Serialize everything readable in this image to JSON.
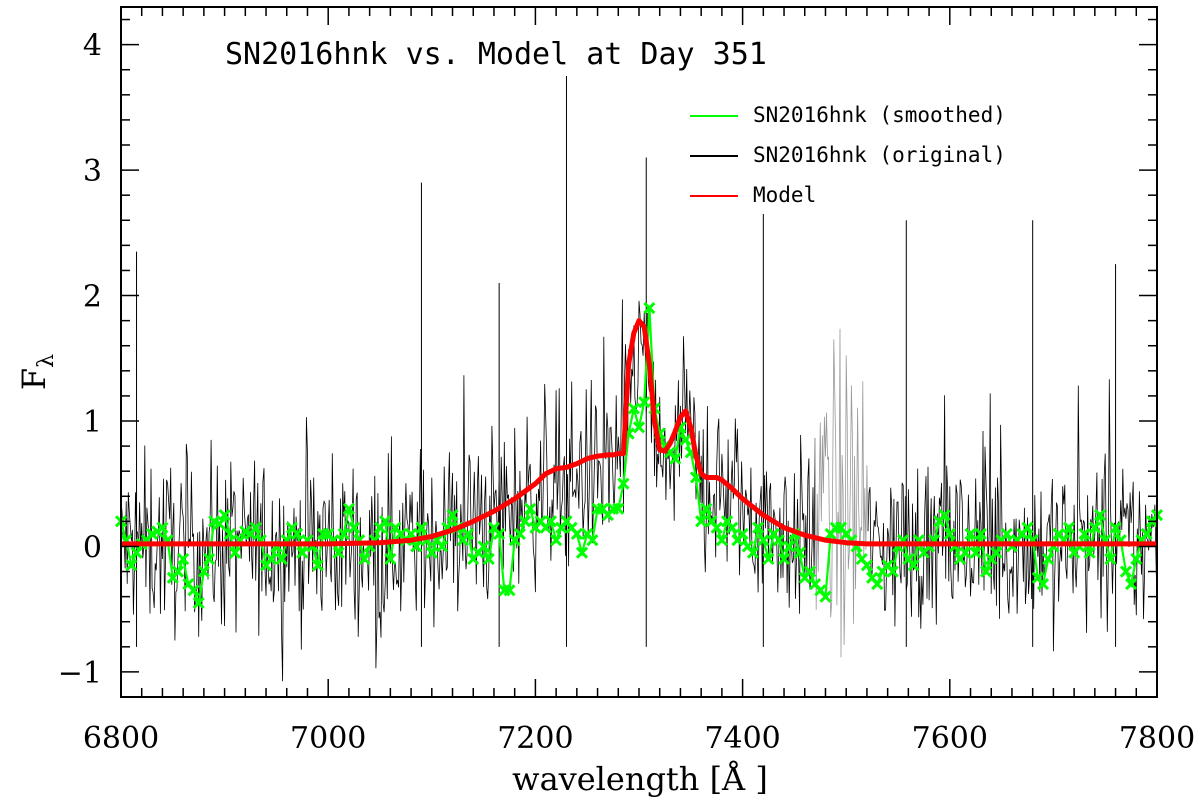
{
  "chart_data": {
    "type": "line",
    "title": "SN2016hnk vs. Model at Day 351",
    "xlabel": "wavelength [Å ]",
    "ylabel": "F",
    "ylabel_subscript": "λ",
    "xlim": [
      6800,
      7800
    ],
    "ylim": [
      -1.2,
      4.3
    ],
    "xticks_major": [
      6800,
      7000,
      7200,
      7400,
      7600,
      7800
    ],
    "xtick_labels": [
      "6800",
      "7000",
      "7200",
      "7400",
      "7600",
      "7800"
    ],
    "yticks_major": [
      -1,
      0,
      1,
      2,
      3,
      4
    ],
    "ytick_labels": [
      "−1",
      "0",
      "1",
      "2",
      "3",
      "4"
    ],
    "legend_position": "top-right",
    "series": [
      {
        "name": "SN2016hnk (smoothed)",
        "color": "#00ff00",
        "marker": "x",
        "x": [
          6800,
          6805,
          6810,
          6815,
          6820,
          6825,
          6830,
          6835,
          6840,
          6845,
          6850,
          6855,
          6860,
          6865,
          6870,
          6875,
          6880,
          6885,
          6890,
          6895,
          6900,
          6905,
          6910,
          6915,
          6920,
          6925,
          6930,
          6935,
          6940,
          6945,
          6950,
          6955,
          6960,
          6965,
          6970,
          6975,
          6980,
          6985,
          6990,
          6995,
          7000,
          7005,
          7010,
          7015,
          7020,
          7025,
          7030,
          7035,
          7040,
          7045,
          7050,
          7055,
          7060,
          7065,
          7070,
          7075,
          7080,
          7085,
          7090,
          7095,
          7100,
          7105,
          7110,
          7115,
          7120,
          7125,
          7130,
          7135,
          7140,
          7145,
          7150,
          7155,
          7160,
          7165,
          7170,
          7175,
          7180,
          7185,
          7190,
          7195,
          7200,
          7205,
          7210,
          7215,
          7220,
          7225,
          7230,
          7235,
          7240,
          7245,
          7250,
          7255,
          7260,
          7265,
          7270,
          7275,
          7280,
          7285,
          7290,
          7295,
          7300,
          7305,
          7310,
          7315,
          7320,
          7325,
          7330,
          7335,
          7340,
          7345,
          7350,
          7355,
          7360,
          7365,
          7370,
          7375,
          7380,
          7385,
          7390,
          7395,
          7400,
          7405,
          7410,
          7415,
          7420,
          7425,
          7430,
          7435,
          7440,
          7445,
          7450,
          7455,
          7460,
          7465,
          7470,
          7475,
          7480,
          7485,
          7490,
          7495,
          7500,
          7505,
          7510,
          7515,
          7520,
          7525,
          7530,
          7535,
          7540,
          7545,
          7550,
          7555,
          7560,
          7565,
          7570,
          7575,
          7580,
          7585,
          7590,
          7595,
          7600,
          7605,
          7610,
          7615,
          7620,
          7625,
          7630,
          7635,
          7640,
          7645,
          7650,
          7655,
          7660,
          7665,
          7670,
          7675,
          7680,
          7685,
          7690,
          7695,
          7700,
          7705,
          7710,
          7715,
          7720,
          7725,
          7730,
          7735,
          7740,
          7745,
          7750,
          7755,
          7760,
          7765,
          7770,
          7775,
          7780,
          7785,
          7790,
          7795,
          7800
        ],
        "y": [
          0.2,
          0.05,
          -0.15,
          -0.05,
          0.02,
          0.05,
          0.1,
          0.12,
          0.15,
          0.05,
          -0.25,
          -0.2,
          -0.1,
          -0.3,
          -0.35,
          -0.45,
          -0.2,
          -0.1,
          0.2,
          0.18,
          0.25,
          0.1,
          -0.05,
          0.05,
          0.12,
          0.1,
          0.15,
          0.05,
          -0.15,
          -0.1,
          0.0,
          -0.1,
          0.05,
          0.15,
          0.1,
          -0.05,
          0.05,
          0.0,
          -0.15,
          0.1,
          0.1,
          0.05,
          -0.05,
          0.1,
          0.3,
          0.15,
          0.05,
          -0.1,
          0.0,
          0.05,
          0.15,
          0.2,
          -0.1,
          0.15,
          0.1,
          0.05,
          0.1,
          0.0,
          0.15,
          0.05,
          -0.05,
          0.05,
          0.0,
          0.15,
          0.25,
          0.15,
          0.05,
          0.1,
          -0.1,
          -0.05,
          0.0,
          -0.1,
          0.15,
          0.1,
          -0.35,
          -0.35,
          0.05,
          0.1,
          0.2,
          0.3,
          0.15,
          0.2,
          0.15,
          0.2,
          0.05,
          0.15,
          0.2,
          0.15,
          0.1,
          -0.05,
          0.1,
          0.05,
          0.3,
          0.3,
          0.25,
          0.3,
          0.3,
          0.5,
          0.9,
          1.1,
          0.95,
          1.15,
          1.9,
          1.1,
          0.9,
          0.8,
          0.75,
          0.7,
          0.95,
          0.85,
          0.75,
          0.55,
          0.2,
          0.3,
          0.2,
          0.15,
          0.05,
          0.2,
          0.15,
          0.05,
          0.1,
          0.0,
          -0.05,
          0.15,
          0.05,
          -0.1,
          0.1,
          0.05,
          -0.1,
          0.0,
          0.1,
          -0.05,
          -0.25,
          -0.2,
          -0.3,
          -0.35,
          -0.4,
          0.1,
          0.15,
          0.15,
          0.1,
          0.05,
          0.0,
          -0.1,
          -0.15,
          -0.25,
          -0.3,
          -0.2,
          -0.15,
          -0.2,
          0.0,
          0.05,
          -0.1,
          -0.15,
          0.05,
          -0.05,
          0.0,
          0.05,
          0.2,
          0.25,
          0.1,
          0.0,
          -0.1,
          -0.05,
          0.1,
          -0.05,
          0.1,
          -0.2,
          -0.1,
          -0.05,
          0.05,
          0.1,
          0.0,
          0.05,
          0.1,
          0.15,
          0.05,
          -0.25,
          -0.3,
          -0.1,
          0.0,
          0.1,
          0.05,
          0.15,
          -0.05,
          0.0,
          0.1,
          -0.05,
          0.15,
          0.25,
          0.05,
          -0.1,
          0.15,
          0.05,
          -0.2,
          -0.3,
          -0.1,
          0.05,
          0.1,
          0.2,
          0.25
        ]
      },
      {
        "name": "SN2016hnk (original)",
        "color": "#000000",
        "telluric_color": "#9a9a9a",
        "telluric_range": [
          7470,
          7520
        ],
        "sampling_step": 1,
        "noise_amplitude": 0.9,
        "peak_features": [
          {
            "x": 7230,
            "y": 3.75
          },
          {
            "x": 7307,
            "y": 3.1
          },
          {
            "x": 7420,
            "y": 2.65
          },
          {
            "x": 7558,
            "y": 2.6
          },
          {
            "x": 7680,
            "y": 2.6
          },
          {
            "x": 7090,
            "y": 2.9
          },
          {
            "x": 6815,
            "y": 2.35
          },
          {
            "x": 7165,
            "y": 2.1
          },
          {
            "x": 7760,
            "y": 2.25
          }
        ]
      },
      {
        "name": "Model",
        "color": "#ff0000",
        "x": [
          6800,
          6850,
          6900,
          6950,
          7000,
          7050,
          7080,
          7100,
          7120,
          7140,
          7160,
          7180,
          7200,
          7210,
          7220,
          7230,
          7240,
          7250,
          7260,
          7270,
          7275,
          7280,
          7285,
          7290,
          7295,
          7300,
          7305,
          7310,
          7315,
          7320,
          7325,
          7330,
          7335,
          7340,
          7345,
          7350,
          7355,
          7360,
          7365,
          7370,
          7375,
          7380,
          7390,
          7400,
          7420,
          7440,
          7460,
          7480,
          7500,
          7520,
          7540,
          7560,
          7600,
          7650,
          7700,
          7750,
          7800
        ],
        "y": [
          0.02,
          0.02,
          0.02,
          0.02,
          0.02,
          0.03,
          0.05,
          0.08,
          0.13,
          0.2,
          0.28,
          0.38,
          0.5,
          0.58,
          0.62,
          0.63,
          0.66,
          0.7,
          0.72,
          0.73,
          0.73,
          0.74,
          0.74,
          1.45,
          1.7,
          1.8,
          1.75,
          1.45,
          1.0,
          0.77,
          0.76,
          0.82,
          0.92,
          1.03,
          1.08,
          0.95,
          0.72,
          0.58,
          0.55,
          0.55,
          0.55,
          0.53,
          0.46,
          0.38,
          0.25,
          0.15,
          0.09,
          0.05,
          0.03,
          0.02,
          0.02,
          0.02,
          0.02,
          0.02,
          0.02,
          0.02,
          0.02
        ]
      }
    ]
  }
}
